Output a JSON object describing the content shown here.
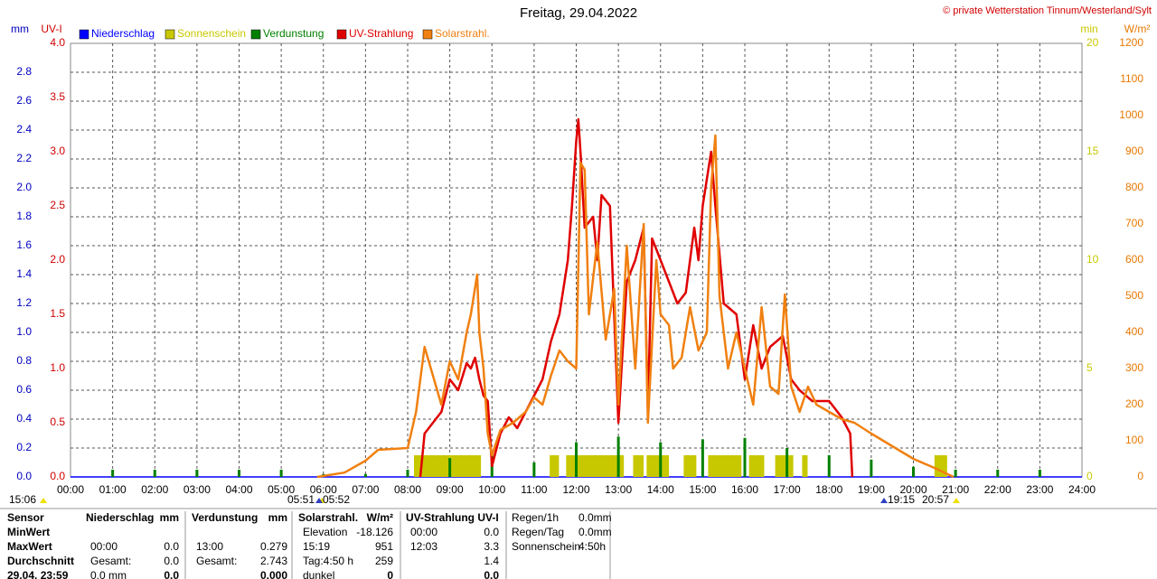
{
  "chart_data": {
    "type": "line",
    "title": "Freitag, 29.04.2022",
    "copyright": "© private Wetterstation Tinnum/Westerland/Sylt",
    "grid": true,
    "xlim": [
      0,
      24
    ],
    "xticks": [
      {
        "value": 0,
        "label": "00:00"
      },
      {
        "value": 1,
        "label": "01:00"
      },
      {
        "value": 2,
        "label": "02:00"
      },
      {
        "value": 3,
        "label": "03:00"
      },
      {
        "value": 4,
        "label": "04:00"
      },
      {
        "value": 5,
        "label": "05:00"
      },
      {
        "value": 6,
        "label": "06:00"
      },
      {
        "value": 7,
        "label": "07:00"
      },
      {
        "value": 8,
        "label": "08:00"
      },
      {
        "value": 9,
        "label": "09:00"
      },
      {
        "value": 10,
        "label": "10:00"
      },
      {
        "value": 11,
        "label": "11:00"
      },
      {
        "value": 12,
        "label": "12:00"
      },
      {
        "value": 13,
        "label": "13:00"
      },
      {
        "value": 14,
        "label": "14:00"
      },
      {
        "value": 15,
        "label": "15:00"
      },
      {
        "value": 16,
        "label": "16:00"
      },
      {
        "value": 17,
        "label": "17:00"
      },
      {
        "value": 18,
        "label": "18:00"
      },
      {
        "value": 19,
        "label": "19:00"
      },
      {
        "value": 20,
        "label": "20:00"
      },
      {
        "value": 21,
        "label": "21:00"
      },
      {
        "value": 22,
        "label": "22:00"
      },
      {
        "value": 23,
        "label": "23:00"
      },
      {
        "value": 24,
        "label": "24:00"
      }
    ],
    "y_axes": [
      {
        "label": "mm",
        "color": "#0000c0",
        "lim": [
          0,
          3
        ],
        "ticks": [
          {
            "value": 0,
            "label": "0.0"
          },
          0.2,
          0.4,
          0.6,
          0.8,
          {
            "value": 1,
            "label": "1.0"
          },
          1.2,
          1.4,
          1.6,
          1.8,
          {
            "value": 2,
            "label": "2.0"
          },
          2.2,
          2.4,
          2.6,
          2.8
        ]
      },
      {
        "label": "UV-I",
        "color": "#d00000",
        "lim": [
          0,
          4
        ],
        "ticks": [
          {
            "value": 0,
            "label": "0.0"
          },
          0.5,
          {
            "value": 1,
            "label": "1.0"
          },
          1.5,
          {
            "value": 2,
            "label": "2.0"
          },
          2.5,
          {
            "value": 3,
            "label": "3.0"
          },
          3.5,
          {
            "value": 4,
            "label": "4.0"
          }
        ]
      },
      {
        "label": "min",
        "color": "#c8c800",
        "lim": [
          0,
          20
        ],
        "ticks": [
          0,
          5,
          10,
          15,
          20
        ]
      },
      {
        "label": "W/m²",
        "color": "#e87800",
        "lim": [
          0,
          1200
        ],
        "ticks": [
          0,
          100,
          200,
          300,
          400,
          500,
          600,
          700,
          800,
          900,
          1000,
          1100,
          1200
        ]
      }
    ],
    "series": [
      {
        "name": "Niederschlag",
        "color": "#0000ff",
        "kind": "line",
        "axis": 0,
        "x": [
          0,
          24
        ],
        "values": [
          0,
          0
        ]
      },
      {
        "name": "Sonnenschein",
        "color": "#c8c800",
        "kind": "intervals",
        "axis": 2,
        "intervals": [
          [
            8.15,
            9.74
          ],
          [
            11.37,
            11.59
          ],
          [
            11.76,
            13.13
          ],
          [
            13.35,
            13.6
          ],
          [
            13.67,
            14.2
          ],
          [
            14.55,
            14.85
          ],
          [
            15.13,
            15.92
          ],
          [
            16.1,
            16.46
          ],
          [
            16.72,
            17.15
          ],
          [
            17.36,
            17.49
          ],
          [
            20.5,
            20.8
          ]
        ],
        "values": [
          1,
          1,
          1,
          1,
          1,
          1,
          1,
          1,
          1,
          1,
          1
        ]
      },
      {
        "name": "Verdunstung",
        "color": "#008000",
        "kind": "spikes",
        "axis": 0,
        "x": [
          1,
          2,
          3,
          4,
          5,
          6,
          7,
          8,
          9,
          10,
          11,
          12,
          13,
          14,
          15,
          16,
          17,
          18,
          19,
          20,
          21,
          22,
          23
        ],
        "values": [
          0.05,
          0.05,
          0.05,
          0.05,
          0.05,
          0.02,
          0.02,
          0.05,
          0.13,
          0.17,
          0.1,
          0.24,
          0.279,
          0.24,
          0.26,
          0.27,
          0.2,
          0.15,
          0.12,
          0.07,
          0.05,
          0.05,
          0.05
        ]
      },
      {
        "name": "UV-Strahlung",
        "color": "#e00000",
        "kind": "line",
        "axis": 1,
        "x": [
          8.3,
          8.4,
          8.6,
          8.8,
          9.0,
          9.2,
          9.4,
          9.5,
          9.6,
          9.7,
          9.8,
          9.9,
          10.0,
          10.2,
          10.4,
          10.6,
          10.8,
          11.0,
          11.2,
          11.4,
          11.6,
          11.8,
          11.9,
          12.0,
          12.05,
          12.1,
          12.2,
          12.4,
          12.5,
          12.6,
          12.8,
          13.0,
          13.2,
          13.4,
          13.6,
          13.7,
          13.8,
          14.0,
          14.2,
          14.4,
          14.6,
          14.8,
          14.9,
          15.0,
          15.2,
          15.3,
          15.5,
          15.8,
          16.0,
          16.2,
          16.4,
          16.6,
          16.9,
          17.1,
          17.3,
          17.6,
          18.0,
          18.3,
          18.5,
          18.55
        ],
        "values": [
          0,
          0.4,
          0.5,
          0.6,
          0.9,
          0.8,
          1.05,
          1.0,
          1.1,
          0.9,
          0.75,
          0.7,
          0.1,
          0.4,
          0.55,
          0.45,
          0.6,
          0.75,
          0.9,
          1.25,
          1.5,
          2.0,
          2.5,
          3.1,
          3.3,
          3.0,
          2.3,
          2.4,
          2.0,
          2.6,
          2.5,
          0.5,
          1.8,
          2.0,
          2.3,
          0.6,
          2.2,
          2.0,
          1.8,
          1.6,
          1.7,
          2.3,
          2.0,
          2.5,
          3.0,
          2.5,
          1.6,
          1.5,
          0.9,
          1.4,
          1.0,
          1.2,
          1.3,
          0.9,
          0.8,
          0.7,
          0.7,
          0.55,
          0.4,
          0
        ]
      },
      {
        "name": "Solarstrahl.",
        "color": "#f08010",
        "kind": "line",
        "axis": 3,
        "x": [
          5.85,
          6.5,
          7.0,
          7.3,
          8.0,
          8.2,
          8.4,
          8.6,
          8.8,
          9.0,
          9.2,
          9.4,
          9.5,
          9.65,
          9.7,
          9.8,
          9.9,
          10.0,
          10.2,
          10.5,
          10.8,
          11.0,
          11.2,
          11.4,
          11.6,
          11.8,
          12.0,
          12.1,
          12.2,
          12.3,
          12.5,
          12.7,
          12.9,
          13.0,
          13.2,
          13.4,
          13.6,
          13.7,
          13.9,
          14.0,
          14.2,
          14.3,
          14.5,
          14.7,
          14.9,
          15.1,
          15.2,
          15.3,
          15.4,
          15.6,
          15.8,
          16.0,
          16.2,
          16.4,
          16.6,
          16.8,
          16.95,
          17.1,
          17.3,
          17.5,
          17.7,
          18.0,
          18.3,
          18.6,
          19.0,
          19.5,
          20.0,
          20.5,
          20.95
        ],
        "values": [
          0,
          12,
          45,
          75,
          80,
          180,
          360,
          280,
          200,
          320,
          270,
          400,
          450,
          560,
          400,
          300,
          120,
          60,
          130,
          150,
          180,
          220,
          200,
          280,
          350,
          320,
          300,
          870,
          850,
          450,
          650,
          380,
          520,
          200,
          640,
          300,
          700,
          150,
          600,
          450,
          420,
          300,
          330,
          470,
          350,
          400,
          800,
          945,
          500,
          300,
          400,
          300,
          200,
          470,
          250,
          230,
          505,
          250,
          180,
          250,
          200,
          180,
          160,
          150,
          120,
          85,
          50,
          25,
          0
        ]
      }
    ],
    "sun_times": [
      "15:06",
      "05:51",
      "05:52",
      "19:15",
      "20:57"
    ]
  },
  "table": {
    "row_labels": [
      "Sensor",
      "MinWert",
      "MaxWert",
      "Durchschnitt",
      "29.04. 23:59"
    ],
    "columns": [
      {
        "rows": [
          {
            "label": "Niederschlag",
            "value": "mm"
          },
          null,
          {
            "label": "00:00",
            "value": "0.0"
          },
          {
            "label": "Gesamt:",
            "value": "0.0"
          },
          {
            "label": "0.0 mm",
            "value": "0.0"
          }
        ]
      },
      {
        "rows": [
          {
            "label": "Verdunstung",
            "value": "mm"
          },
          null,
          {
            "label": "13:00",
            "value": "0.279"
          },
          {
            "label": "Gesamt:",
            "value": "2.743"
          },
          {
            "value": "0.000"
          }
        ]
      },
      {
        "rows": [
          {
            "label": "Solarstrahl.",
            "value": "W/m²"
          },
          {
            "label": "Elevation",
            "value": "-18.126"
          },
          {
            "label": "15:19",
            "value": "951"
          },
          {
            "label": "Tag:4:50 h",
            "value": "259"
          },
          {
            "label": "dunkel",
            "value": "0"
          }
        ]
      },
      {
        "rows": [
          {
            "label": "UV-Strahlung UV-I"
          },
          {
            "label": "00:00",
            "value": "0.0"
          },
          {
            "label": "12:03",
            "value": "3.3"
          },
          {
            "value": "1.4"
          },
          {
            "value": "0.0"
          }
        ]
      },
      {
        "rows": [
          {
            "label": "Regen/1h",
            "value": "0.0mm"
          },
          {
            "label": "Regen/Tag",
            "value": "0.0mm"
          },
          {
            "label": "Sonnenschein",
            "value": "4:50h"
          },
          null,
          null
        ]
      }
    ]
  }
}
